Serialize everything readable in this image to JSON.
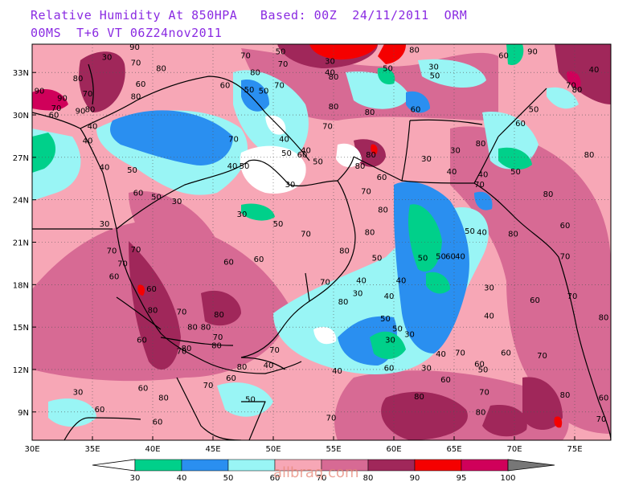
{
  "header": {
    "line1": "Relative Humidity At 850HPA   Based: 00Z  24/11/2011  ORM",
    "line2": "00MS  T+6 VT 06Z24nov2011"
  },
  "lat_labels": [
    {
      "text": "33N",
      "lat": 33
    },
    {
      "text": "30N",
      "lat": 30
    },
    {
      "text": "27N",
      "lat": 27
    },
    {
      "text": "24N",
      "lat": 24
    },
    {
      "text": "21N",
      "lat": 21
    },
    {
      "text": "18N",
      "lat": 18
    },
    {
      "text": "15N",
      "lat": 15
    },
    {
      "text": "12N",
      "lat": 12
    },
    {
      "text": "9N",
      "lat": 9
    }
  ],
  "lon_labels": [
    {
      "text": "30E",
      "lon": 30
    },
    {
      "text": "35E",
      "lon": 35
    },
    {
      "text": "40E",
      "lon": 40
    },
    {
      "text": "45E",
      "lon": 45
    },
    {
      "text": "50E",
      "lon": 50
    },
    {
      "text": "55E",
      "lon": 55
    },
    {
      "text": "60E",
      "lon": 60
    },
    {
      "text": "65E",
      "lon": 65
    },
    {
      "text": "70E",
      "lon": 70
    },
    {
      "text": "75E",
      "lon": 75
    }
  ],
  "legend": {
    "levels": [
      "30",
      "40",
      "50",
      "60",
      "70",
      "80",
      "90",
      "95",
      "100"
    ],
    "colors": [
      "#00d08a",
      "#2a8ff0",
      "#99f5f5",
      "#f7a7b6",
      "#d76a94",
      "#a0275a",
      "#f50000",
      "#d0005a"
    ],
    "low_color": "#ffffff",
    "high_color": "#777777"
  },
  "watermark": "allbraq.com",
  "contour_labels": [
    {
      "t": "70",
      "lon": 32.0,
      "lat": 30.3
    },
    {
      "t": "80",
      "lon": 33.8,
      "lat": 32.4
    },
    {
      "t": "90",
      "lon": 32.5,
      "lat": 31.0
    },
    {
      "t": "90",
      "lon": 30.6,
      "lat": 31.5
    },
    {
      "t": "60",
      "lon": 31.8,
      "lat": 29.8
    },
    {
      "t": "90",
      "lon": 34.0,
      "lat": 30.1
    },
    {
      "t": "40",
      "lon": 34.6,
      "lat": 28.0
    },
    {
      "t": "30",
      "lon": 36.2,
      "lat": 33.9
    },
    {
      "t": "70",
      "lon": 38.6,
      "lat": 33.5
    },
    {
      "t": "80",
      "lon": 38.6,
      "lat": 31.1
    },
    {
      "t": "40",
      "lon": 36.0,
      "lat": 26.1
    },
    {
      "t": "50",
      "lon": 38.3,
      "lat": 25.9
    },
    {
      "t": "60",
      "lon": 38.8,
      "lat": 24.3
    },
    {
      "t": "30",
      "lon": 36.0,
      "lat": 22.1
    },
    {
      "t": "50",
      "lon": 40.3,
      "lat": 24.0
    },
    {
      "t": "70",
      "lon": 47.7,
      "lat": 34.0
    },
    {
      "t": "80",
      "lon": 48.5,
      "lat": 32.8
    },
    {
      "t": "50",
      "lon": 49.2,
      "lat": 31.5
    },
    {
      "t": "70",
      "lon": 50.5,
      "lat": 31.9
    },
    {
      "t": "60",
      "lon": 46.0,
      "lat": 31.9
    },
    {
      "t": "50",
      "lon": 48.0,
      "lat": 31.6
    },
    {
      "t": "70",
      "lon": 46.7,
      "lat": 28.1
    },
    {
      "t": "40",
      "lon": 46.6,
      "lat": 26.2
    },
    {
      "t": "50",
      "lon": 47.6,
      "lat": 26.2
    },
    {
      "t": "40",
      "lon": 50.9,
      "lat": 28.1
    },
    {
      "t": "50",
      "lon": 51.1,
      "lat": 27.1
    },
    {
      "t": "60",
      "lon": 52.4,
      "lat": 27.0
    },
    {
      "t": "50",
      "lon": 53.7,
      "lat": 26.5
    },
    {
      "t": "30",
      "lon": 51.4,
      "lat": 24.9
    },
    {
      "t": "70",
      "lon": 54.5,
      "lat": 29.0
    },
    {
      "t": "80",
      "lon": 55.0,
      "lat": 30.4
    },
    {
      "t": "80",
      "lon": 57.2,
      "lat": 26.2
    },
    {
      "t": "70",
      "lon": 57.7,
      "lat": 24.4
    },
    {
      "t": "80",
      "lon": 59.1,
      "lat": 23.1
    },
    {
      "t": "50",
      "lon": 50.4,
      "lat": 22.1
    },
    {
      "t": "70",
      "lon": 52.7,
      "lat": 21.4
    },
    {
      "t": "60",
      "lon": 48.8,
      "lat": 19.6
    },
    {
      "t": "80",
      "lon": 58.0,
      "lat": 21.5
    },
    {
      "t": "50",
      "lon": 58.6,
      "lat": 19.7
    },
    {
      "t": "70",
      "lon": 54.3,
      "lat": 18.0
    },
    {
      "t": "40",
      "lon": 57.3,
      "lat": 18.1
    },
    {
      "t": "30",
      "lon": 57.0,
      "lat": 17.2
    },
    {
      "t": "40",
      "lon": 59.6,
      "lat": 17.0
    },
    {
      "t": "40",
      "lon": 60.6,
      "lat": 18.1
    },
    {
      "t": "50",
      "lon": 59.3,
      "lat": 15.4
    },
    {
      "t": "30",
      "lon": 61.3,
      "lat": 14.3
    },
    {
      "t": "50",
      "lon": 62.4,
      "lat": 19.7
    },
    {
      "t": "50",
      "lon": 63.9,
      "lat": 19.8
    },
    {
      "t": "60",
      "lon": 64.7,
      "lat": 19.8
    },
    {
      "t": "40",
      "lon": 65.5,
      "lat": 19.8
    },
    {
      "t": "30",
      "lon": 67.9,
      "lat": 17.6
    },
    {
      "t": "40",
      "lon": 67.9,
      "lat": 15.6
    },
    {
      "t": "50",
      "lon": 66.3,
      "lat": 21.6
    },
    {
      "t": "40",
      "lon": 67.3,
      "lat": 21.5
    },
    {
      "t": "50",
      "lon": 50.6,
      "lat": 34.3
    },
    {
      "t": "70",
      "lon": 50.8,
      "lat": 33.4
    },
    {
      "t": "30",
      "lon": 54.7,
      "lat": 33.6
    },
    {
      "t": "40",
      "lon": 54.7,
      "lat": 32.8
    },
    {
      "t": "80",
      "lon": 55.0,
      "lat": 32.5
    },
    {
      "t": "50",
      "lon": 59.5,
      "lat": 33.1
    },
    {
      "t": "90",
      "lon": 59.3,
      "lat": 35.2
    },
    {
      "t": "80",
      "lon": 61.7,
      "lat": 34.4
    },
    {
      "t": "30",
      "lon": 63.3,
      "lat": 33.2
    },
    {
      "t": "50",
      "lon": 63.4,
      "lat": 32.6
    },
    {
      "t": "80",
      "lon": 58.0,
      "lat": 30.0
    },
    {
      "t": "60",
      "lon": 61.8,
      "lat": 30.2
    },
    {
      "t": "30",
      "lon": 62.7,
      "lat": 26.7
    },
    {
      "t": "40",
      "lon": 64.8,
      "lat": 25.8
    },
    {
      "t": "60",
      "lon": 59.0,
      "lat": 25.4
    },
    {
      "t": "30",
      "lon": 65.1,
      "lat": 27.3
    },
    {
      "t": "80",
      "lon": 67.2,
      "lat": 27.8
    },
    {
      "t": "40",
      "lon": 67.4,
      "lat": 25.6
    },
    {
      "t": "70",
      "lon": 67.1,
      "lat": 24.9
    },
    {
      "t": "50",
      "lon": 70.1,
      "lat": 25.8
    },
    {
      "t": "60",
      "lon": 70.5,
      "lat": 29.2
    },
    {
      "t": "50",
      "lon": 71.6,
      "lat": 30.2
    },
    {
      "t": "60",
      "lon": 69.1,
      "lat": 34.0
    },
    {
      "t": "90",
      "lon": 71.5,
      "lat": 34.3
    },
    {
      "t": "70",
      "lon": 74.7,
      "lat": 31.9
    },
    {
      "t": "80",
      "lon": 75.2,
      "lat": 31.6
    },
    {
      "t": "40",
      "lon": 76.6,
      "lat": 33.0
    },
    {
      "t": "80",
      "lon": 76.2,
      "lat": 27.0
    },
    {
      "t": "80",
      "lon": 72.8,
      "lat": 24.2
    },
    {
      "t": "60",
      "lon": 74.2,
      "lat": 22.0
    },
    {
      "t": "80",
      "lon": 69.9,
      "lat": 21.4
    },
    {
      "t": "70",
      "lon": 74.2,
      "lat": 19.8
    },
    {
      "t": "60",
      "lon": 71.7,
      "lat": 16.7
    },
    {
      "t": "70",
      "lon": 74.8,
      "lat": 17.0
    },
    {
      "t": "80",
      "lon": 77.4,
      "lat": 15.5
    },
    {
      "t": "70",
      "lon": 72.3,
      "lat": 12.8
    },
    {
      "t": "50",
      "lon": 60.3,
      "lat": 14.7
    },
    {
      "t": "30",
      "lon": 59.7,
      "lat": 13.9
    },
    {
      "t": "40",
      "lon": 63.9,
      "lat": 12.9
    },
    {
      "t": "30",
      "lon": 62.7,
      "lat": 11.9
    },
    {
      "t": "60",
      "lon": 64.3,
      "lat": 11.1
    },
    {
      "t": "70",
      "lon": 65.5,
      "lat": 13.0
    },
    {
      "t": "60",
      "lon": 67.1,
      "lat": 12.2
    },
    {
      "t": "50",
      "lon": 67.4,
      "lat": 11.8
    },
    {
      "t": "60",
      "lon": 69.3,
      "lat": 13.0
    },
    {
      "t": "70",
      "lon": 67.5,
      "lat": 10.2
    },
    {
      "t": "80",
      "lon": 62.1,
      "lat": 9.9
    },
    {
      "t": "80",
      "lon": 67.2,
      "lat": 8.8
    },
    {
      "t": "80",
      "lon": 74.2,
      "lat": 10.0
    },
    {
      "t": "60",
      "lon": 77.4,
      "lat": 9.8
    },
    {
      "t": "70",
      "lon": 77.2,
      "lat": 8.3
    },
    {
      "t": "60",
      "lon": 59.6,
      "lat": 11.9
    },
    {
      "t": "70",
      "lon": 42.4,
      "lat": 15.9
    },
    {
      "t": "80",
      "lon": 44.4,
      "lat": 14.8
    },
    {
      "t": "70",
      "lon": 45.4,
      "lat": 14.1
    },
    {
      "t": "60",
      "lon": 46.3,
      "lat": 19.4
    },
    {
      "t": "80",
      "lon": 45.5,
      "lat": 15.7
    },
    {
      "t": "80",
      "lon": 43.3,
      "lat": 14.8
    },
    {
      "t": "70",
      "lon": 42.4,
      "lat": 13.1
    },
    {
      "t": "80",
      "lon": 42.8,
      "lat": 13.3
    },
    {
      "t": "60",
      "lon": 39.9,
      "lat": 17.5
    },
    {
      "t": "70",
      "lon": 37.5,
      "lat": 19.3
    },
    {
      "t": "60",
      "lon": 36.8,
      "lat": 18.4
    },
    {
      "t": "70",
      "lon": 36.6,
      "lat": 20.2
    },
    {
      "t": "70",
      "lon": 38.6,
      "lat": 20.3
    },
    {
      "t": "80",
      "lon": 40.0,
      "lat": 16.0
    },
    {
      "t": "60",
      "lon": 39.1,
      "lat": 13.9
    },
    {
      "t": "60",
      "lon": 39.2,
      "lat": 10.5
    },
    {
      "t": "30",
      "lon": 33.8,
      "lat": 10.2
    },
    {
      "t": "60",
      "lon": 35.6,
      "lat": 9.0
    },
    {
      "t": "80",
      "lon": 40.9,
      "lat": 9.8
    },
    {
      "t": "80",
      "lon": 45.3,
      "lat": 13.5
    },
    {
      "t": "70",
      "lon": 44.6,
      "lat": 10.7
    },
    {
      "t": "40",
      "lon": 49.6,
      "lat": 12.1
    },
    {
      "t": "70",
      "lon": 50.1,
      "lat": 13.2
    },
    {
      "t": "80",
      "lon": 47.4,
      "lat": 12.0
    },
    {
      "t": "60",
      "lon": 46.5,
      "lat": 11.2
    },
    {
      "t": "40",
      "lon": 55.3,
      "lat": 11.7
    },
    {
      "t": "50",
      "lon": 48.1,
      "lat": 9.7
    },
    {
      "t": "60",
      "lon": 40.4,
      "lat": 8.1
    },
    {
      "t": "70",
      "lon": 54.8,
      "lat": 8.4
    },
    {
      "t": "80",
      "lon": 55.8,
      "lat": 16.6
    },
    {
      "t": "80",
      "lon": 55.9,
      "lat": 20.2
    },
    {
      "t": "30",
      "lon": 47.4,
      "lat": 22.8
    },
    {
      "t": "30",
      "lon": 42.0,
      "lat": 23.7
    },
    {
      "t": "40",
      "lon": 52.7,
      "lat": 27.3
    },
    {
      "t": "80",
      "lon": 58.1,
      "lat": 27.0
    },
    {
      "t": "60",
      "lon": 39.0,
      "lat": 32.0
    },
    {
      "t": "70",
      "lon": 34.6,
      "lat": 31.3
    },
    {
      "t": "80",
      "lon": 40.7,
      "lat": 33.1
    },
    {
      "t": "80",
      "lon": 34.8,
      "lat": 30.2
    },
    {
      "t": "40",
      "lon": 35.0,
      "lat": 29.0
    },
    {
      "t": "90",
      "lon": 38.5,
      "lat": 34.6
    }
  ]
}
